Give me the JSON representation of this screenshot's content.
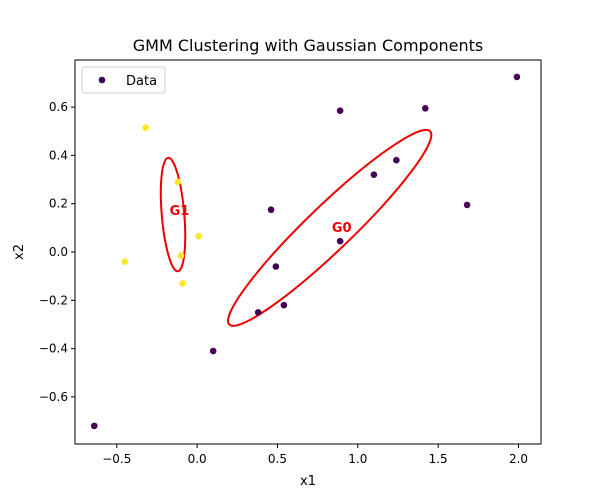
{
  "chart_data": {
    "type": "scatter",
    "title": "GMM Clustering with Gaussian Components",
    "xlabel": "x1",
    "ylabel": "x2",
    "xlim": [
      -0.76,
      2.14
    ],
    "ylim": [
      -0.795,
      0.795
    ],
    "xticks": [
      -0.5,
      0.0,
      0.5,
      1.0,
      1.5,
      2.0
    ],
    "xtick_labels": [
      "−0.5",
      "0.0",
      "0.5",
      "1.0",
      "1.5",
      "2.0"
    ],
    "yticks": [
      -0.6,
      -0.4,
      -0.2,
      0.0,
      0.2,
      0.4,
      0.6
    ],
    "ytick_labels": [
      "−0.6",
      "−0.4",
      "−0.2",
      "0.0",
      "0.2",
      "0.4",
      "0.6"
    ],
    "grid": false,
    "legend": {
      "placement": "upper-left",
      "entries": [
        {
          "label": "Data",
          "color": "#440154"
        }
      ]
    },
    "cluster_colors": {
      "0": "#440154",
      "1": "#fde725"
    },
    "points": [
      {
        "x": 1.99,
        "y": 0.725,
        "cluster": 0
      },
      {
        "x": 1.42,
        "y": 0.595,
        "cluster": 0
      },
      {
        "x": 0.89,
        "y": 0.585,
        "cluster": 0
      },
      {
        "x": 1.24,
        "y": 0.38,
        "cluster": 0
      },
      {
        "x": 1.1,
        "y": 0.32,
        "cluster": 0
      },
      {
        "x": 1.68,
        "y": 0.195,
        "cluster": 0
      },
      {
        "x": 0.46,
        "y": 0.175,
        "cluster": 0
      },
      {
        "x": 0.89,
        "y": 0.045,
        "cluster": 0
      },
      {
        "x": 0.49,
        "y": -0.06,
        "cluster": 0
      },
      {
        "x": 0.54,
        "y": -0.22,
        "cluster": 0
      },
      {
        "x": 0.38,
        "y": -0.25,
        "cluster": 0
      },
      {
        "x": 0.1,
        "y": -0.41,
        "cluster": 0
      },
      {
        "x": -0.64,
        "y": -0.72,
        "cluster": 0
      },
      {
        "x": -0.32,
        "y": 0.515,
        "cluster": 1
      },
      {
        "x": -0.12,
        "y": 0.29,
        "cluster": 1
      },
      {
        "x": 0.01,
        "y": 0.065,
        "cluster": 1
      },
      {
        "x": -0.1,
        "y": -0.015,
        "cluster": 1
      },
      {
        "x": -0.45,
        "y": -0.04,
        "cluster": 1
      },
      {
        "x": -0.09,
        "y": -0.13,
        "cluster": 1
      }
    ],
    "components": [
      {
        "label": "G0",
        "center": [
          0.9,
          0.1
        ],
        "endpoints": [
          [
            0.2,
            -0.3
          ],
          [
            1.45,
            0.5
          ]
        ],
        "semi_minor_data_x": 0.14,
        "color": "#ee0000"
      },
      {
        "label": "G1",
        "center": [
          -0.11,
          0.17
        ],
        "endpoints": [
          [
            -0.18,
            0.39
          ],
          [
            -0.12,
            -0.08
          ]
        ],
        "semi_minor_data_x": 0.07,
        "color": "#ee0000"
      }
    ]
  }
}
